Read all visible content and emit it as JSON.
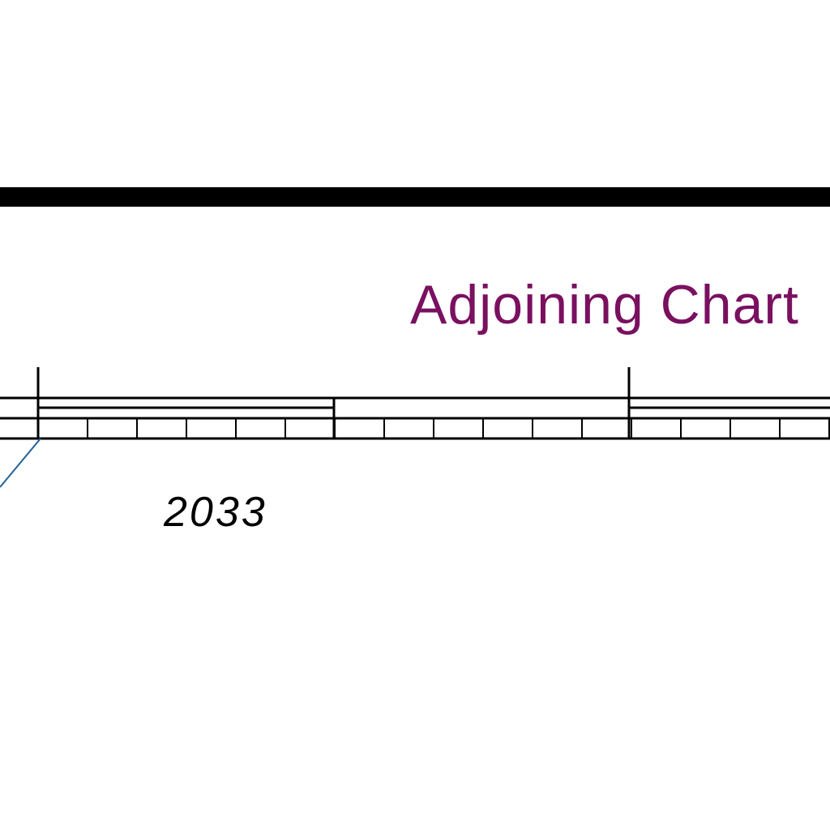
{
  "map": {
    "adjoining_chart_label": "Adjoining Chart",
    "adjoining_chart_number": "2033",
    "colors": {
      "label": "#7a1060",
      "number": "#000000",
      "border": "#000000",
      "leader_line": "#1f5f9a"
    }
  }
}
